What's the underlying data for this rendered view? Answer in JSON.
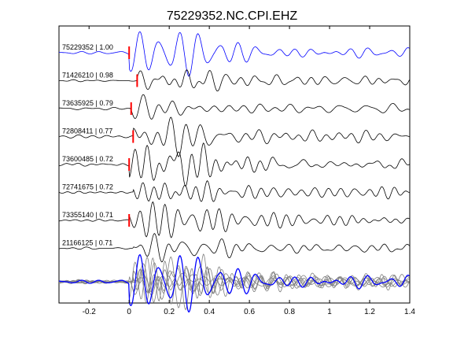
{
  "chart_data": {
    "type": "line",
    "title": "75229352.NC.CPI.EHZ",
    "xlabel": "",
    "ylabel": "",
    "xlim": [
      -0.35,
      1.4
    ],
    "x_ticks": [
      -0.2,
      0,
      0.2,
      0.4,
      0.6,
      0.8,
      1,
      1.2,
      1.4
    ],
    "x_tick_labels": [
      "-0.2",
      "0",
      "0.2",
      "0.4",
      "0.6",
      "0.8",
      "1",
      "1.2",
      "1.4"
    ],
    "grid": false,
    "pick_marker_color": "#ff0000",
    "reference_color": "#0000ff",
    "trace_color": "#000000",
    "overlay_trace_color": "#808080",
    "series": [
      {
        "name": "75229352 | 1.00",
        "pick": 0.0,
        "reference": true
      },
      {
        "name": "71426210 | 0.98",
        "pick": 0.04,
        "reference": false
      },
      {
        "name": "73635925 | 0.79",
        "pick": 0.01,
        "reference": false
      },
      {
        "name": "72808411 | 0.77",
        "pick": 0.02,
        "reference": false
      },
      {
        "name": "73600485 | 0.72",
        "pick": 0.0,
        "reference": false
      },
      {
        "name": "72741675 | 0.72",
        "pick": null,
        "reference": false
      },
      {
        "name": "73355140 | 0.71",
        "pick": 0.0,
        "reference": false
      },
      {
        "name": "21166125 | 0.71",
        "pick": null,
        "reference": false
      }
    ]
  }
}
